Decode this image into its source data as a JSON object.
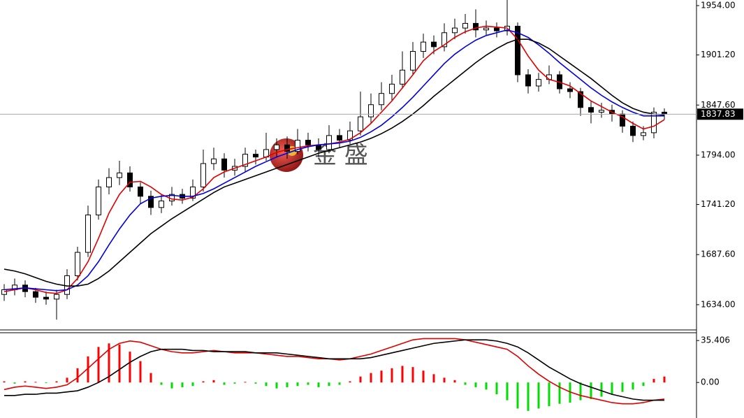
{
  "watermark": "金 盛",
  "chart_data": [
    {
      "type": "candlestick",
      "ylim": [
        1607,
        1960
      ],
      "yticks": [
        {
          "value": 1954,
          "label": "1954.00"
        },
        {
          "value": 1901.2,
          "label": "1901.20"
        },
        {
          "value": 1847.6,
          "label": "1847.60"
        },
        {
          "value": 1794,
          "label": "1794.00"
        },
        {
          "value": 1741.2,
          "label": "1741.20"
        },
        {
          "value": 1687.6,
          "label": "1687.60"
        },
        {
          "value": 1634,
          "label": "1634.00"
        }
      ],
      "last_price": 1837.83,
      "ohlc": [
        [
          1645,
          1656,
          1638,
          1650
        ],
        [
          1650,
          1662,
          1644,
          1655
        ],
        [
          1655,
          1660,
          1642,
          1648
        ],
        [
          1648,
          1652,
          1636,
          1642
        ],
        [
          1642,
          1648,
          1634,
          1640
        ],
        [
          1640,
          1650,
          1618,
          1645
        ],
        [
          1645,
          1672,
          1640,
          1665
        ],
        [
          1665,
          1696,
          1660,
          1690
        ],
        [
          1690,
          1740,
          1685,
          1730
        ],
        [
          1730,
          1768,
          1725,
          1760
        ],
        [
          1760,
          1780,
          1752,
          1770
        ],
        [
          1770,
          1788,
          1762,
          1775
        ],
        [
          1775,
          1782,
          1755,
          1760
        ],
        [
          1760,
          1765,
          1742,
          1750
        ],
        [
          1750,
          1756,
          1730,
          1738
        ],
        [
          1738,
          1752,
          1732,
          1745
        ],
        [
          1745,
          1760,
          1740,
          1752
        ],
        [
          1752,
          1758,
          1742,
          1748
        ],
        [
          1748,
          1768,
          1745,
          1760
        ],
        [
          1760,
          1800,
          1755,
          1785
        ],
        [
          1785,
          1802,
          1778,
          1790
        ],
        [
          1790,
          1796,
          1770,
          1778
        ],
        [
          1778,
          1790,
          1772,
          1782
        ],
        [
          1782,
          1802,
          1776,
          1795
        ],
        [
          1795,
          1800,
          1784,
          1792
        ],
        [
          1792,
          1818,
          1788,
          1800
        ],
        [
          1800,
          1812,
          1792,
          1805
        ],
        [
          1805,
          1814,
          1790,
          1798
        ],
        [
          1798,
          1822,
          1795,
          1810
        ],
        [
          1810,
          1818,
          1798,
          1805
        ],
        [
          1805,
          1812,
          1792,
          1800
        ],
        [
          1800,
          1826,
          1796,
          1815
        ],
        [
          1815,
          1822,
          1802,
          1810
        ],
        [
          1810,
          1830,
          1806,
          1820
        ],
        [
          1820,
          1862,
          1815,
          1835
        ],
        [
          1835,
          1860,
          1828,
          1848
        ],
        [
          1848,
          1872,
          1842,
          1860
        ],
        [
          1860,
          1880,
          1852,
          1870
        ],
        [
          1870,
          1905,
          1865,
          1885
        ],
        [
          1885,
          1915,
          1880,
          1905
        ],
        [
          1905,
          1924,
          1898,
          1915
        ],
        [
          1915,
          1922,
          1902,
          1910
        ],
        [
          1910,
          1935,
          1905,
          1925
        ],
        [
          1925,
          1940,
          1918,
          1930
        ],
        [
          1930,
          1945,
          1924,
          1935
        ],
        [
          1935,
          1950,
          1920,
          1928
        ],
        [
          1928,
          1938,
          1922,
          1930
        ],
        [
          1930,
          1936,
          1920,
          1927
        ],
        [
          1927,
          1960,
          1922,
          1932
        ],
        [
          1932,
          1936,
          1872,
          1880
        ],
        [
          1880,
          1886,
          1860,
          1868
        ],
        [
          1868,
          1882,
          1862,
          1875
        ],
        [
          1875,
          1890,
          1870,
          1880
        ],
        [
          1880,
          1884,
          1860,
          1865
        ],
        [
          1865,
          1872,
          1855,
          1862
        ],
        [
          1862,
          1866,
          1836,
          1845
        ],
        [
          1845,
          1852,
          1828,
          1840
        ],
        [
          1840,
          1850,
          1834,
          1842
        ],
        [
          1842,
          1848,
          1830,
          1838
        ],
        [
          1838,
          1842,
          1818,
          1825
        ],
        [
          1825,
          1830,
          1808,
          1815
        ],
        [
          1815,
          1825,
          1810,
          1818
        ],
        [
          1818,
          1845,
          1812,
          1840
        ],
        [
          1840,
          1844,
          1832,
          1838
        ]
      ],
      "lines": [
        {
          "color": "#e00000",
          "values": [
            1648,
            1650,
            1652,
            1650,
            1647,
            1646,
            1650,
            1662,
            1680,
            1705,
            1732,
            1752,
            1765,
            1766,
            1760,
            1752,
            1747,
            1746,
            1749,
            1758,
            1770,
            1776,
            1780,
            1784,
            1788,
            1792,
            1797,
            1800,
            1802,
            1804,
            1805,
            1806,
            1808,
            1811,
            1818,
            1828,
            1840,
            1852,
            1866,
            1880,
            1895,
            1905,
            1912,
            1920,
            1926,
            1930,
            1932,
            1931,
            1930,
            1918,
            1900,
            1885,
            1875,
            1872,
            1868,
            1860,
            1852,
            1846,
            1840,
            1835,
            1828,
            1822,
            1825,
            1832
          ]
        },
        {
          "color": "#0000e0",
          "values": [
            1650,
            1651,
            1652,
            1651,
            1650,
            1649,
            1650,
            1655,
            1665,
            1680,
            1698,
            1715,
            1730,
            1742,
            1748,
            1750,
            1751,
            1750,
            1750,
            1753,
            1758,
            1764,
            1770,
            1776,
            1782,
            1787,
            1792,
            1796,
            1800,
            1803,
            1805,
            1806,
            1807,
            1809,
            1813,
            1819,
            1826,
            1835,
            1845,
            1856,
            1868,
            1880,
            1892,
            1902,
            1910,
            1917,
            1922,
            1925,
            1928,
            1925,
            1920,
            1912,
            1903,
            1893,
            1884,
            1875,
            1866,
            1858,
            1851,
            1845,
            1840,
            1836,
            1836,
            1836
          ]
        },
        {
          "color": "#000000",
          "values": [
            1672,
            1670,
            1667,
            1663,
            1659,
            1656,
            1654,
            1654,
            1656,
            1662,
            1670,
            1680,
            1690,
            1700,
            1710,
            1718,
            1726,
            1733,
            1740,
            1747,
            1754,
            1760,
            1764,
            1768,
            1772,
            1776,
            1780,
            1784,
            1788,
            1792,
            1796,
            1799,
            1802,
            1805,
            1808,
            1812,
            1817,
            1823,
            1830,
            1838,
            1847,
            1857,
            1866,
            1875,
            1884,
            1893,
            1901,
            1908,
            1914,
            1918,
            1918,
            1914,
            1908,
            1900,
            1892,
            1884,
            1876,
            1867,
            1858,
            1850,
            1844,
            1840,
            1838,
            1837
          ]
        }
      ]
    },
    {
      "type": "macd",
      "ylim": [
        -30,
        42
      ],
      "yticks": [
        35.406,
        {
          "value": 0,
          "label": "0.00"
        }
      ],
      "histogram_colors": {
        "positive": "#ff0000",
        "negative": "#00dd00"
      },
      "histogram": [
        1,
        -1,
        1,
        0.5,
        -0.5,
        1,
        4,
        12,
        22,
        30,
        33,
        32,
        26,
        18,
        8,
        -2,
        -5,
        -4,
        -3,
        1,
        2,
        -2,
        -1,
        0.5,
        -1,
        -3,
        -5,
        -4,
        -3,
        -2,
        -4,
        -3,
        -2,
        1,
        5,
        8,
        10,
        12,
        14,
        13,
        10,
        7,
        4,
        2,
        -2,
        -4,
        -6,
        -10,
        -15,
        -22,
        -24,
        -22,
        -20,
        -18,
        -17,
        -15,
        -14,
        -12,
        -10,
        -8,
        -6,
        -3,
        3,
        5
      ],
      "lines": [
        {
          "color": "#e00000",
          "values": [
            -6,
            -4,
            -3,
            -4,
            -5,
            -4,
            -2,
            4,
            12,
            20,
            28,
            33,
            35,
            34,
            31,
            28,
            26,
            25,
            25,
            26,
            27,
            26,
            25,
            25,
            25,
            24,
            23,
            22,
            22,
            21,
            20,
            20,
            19,
            20,
            22,
            24,
            27,
            30,
            33,
            36,
            37,
            37,
            37,
            37,
            36,
            34,
            32,
            30,
            28,
            22,
            14,
            7,
            1,
            -4,
            -8,
            -11,
            -13,
            -15,
            -17,
            -18,
            -18,
            -17,
            -15,
            -14
          ]
        },
        {
          "color": "#000000",
          "values": [
            -11,
            -11,
            -10,
            -10,
            -9,
            -9,
            -8,
            -7,
            -4,
            0,
            5,
            11,
            17,
            22,
            26,
            28,
            28,
            28,
            27,
            27,
            26,
            26,
            26,
            26,
            25,
            25,
            25,
            24,
            23,
            22,
            21,
            20,
            20,
            20,
            20,
            21,
            23,
            25,
            27,
            29,
            31,
            33,
            34,
            35,
            36,
            36,
            36,
            35,
            33,
            30,
            25,
            19,
            13,
            8,
            3,
            -1,
            -4,
            -7,
            -10,
            -12,
            -14,
            -15,
            -15,
            -15
          ]
        }
      ]
    }
  ]
}
